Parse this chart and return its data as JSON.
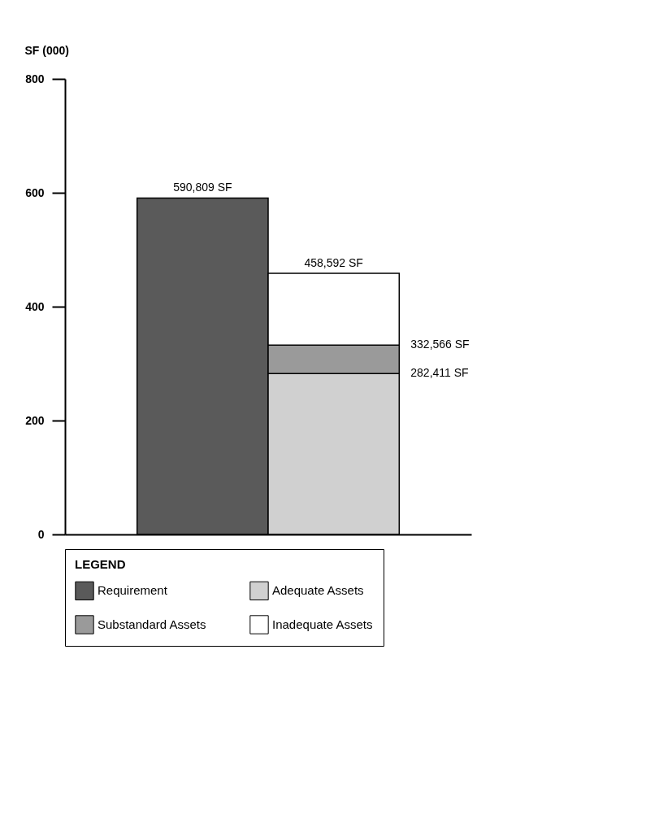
{
  "chart_data": {
    "type": "bar",
    "ylabel": "SF (000)",
    "legend_title": "LEGEND",
    "categories": [
      null,
      null
    ],
    "stacked": true,
    "series": [
      {
        "name": "Requirement",
        "color": "#5a5a5a",
        "values": [
          590.809,
          null
        ]
      },
      {
        "name": "Adequate Assets",
        "color": "#d0d0d0",
        "values": [
          null,
          282.411
        ]
      },
      {
        "name": "Substandard Assets",
        "color": "#9a9a9a",
        "values": [
          null,
          50.155
        ]
      },
      {
        "name": "Inadequate Assets",
        "color": "#ffffff",
        "values": [
          null,
          126.026
        ]
      }
    ],
    "annotations": [
      {
        "text": "590,809 SF",
        "y": 590.809
      },
      {
        "text": "458,592 SF",
        "y": 458.592
      },
      "332,566 SF",
      "282,411 SF"
    ],
    "ylim": [
      0,
      800
    ],
    "yticks": [
      0,
      200,
      400,
      600,
      800
    ],
    "grid": false,
    "legend": "bottom",
    "tick_labels": "y"
  }
}
